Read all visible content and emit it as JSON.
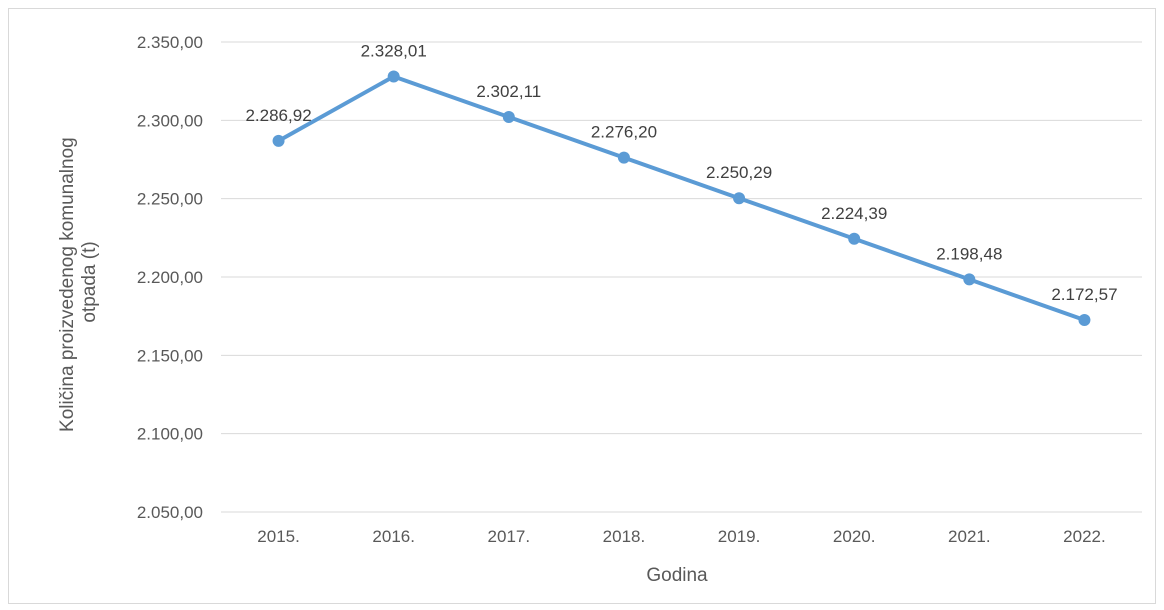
{
  "chart_data": {
    "type": "line",
    "categories": [
      "2015.",
      "2016.",
      "2017.",
      "2018.",
      "2019.",
      "2020.",
      "2021.",
      "2022."
    ],
    "series": [
      {
        "values": [
          2286.92,
          2328.01,
          2302.11,
          2276.2,
          2250.29,
          2224.39,
          2198.48,
          2172.57
        ],
        "data_labels": [
          "2.286,92",
          "2.328,01",
          "2.302,11",
          "2.276,20",
          "2.250,29",
          "2.224,39",
          "2.198,48",
          "2.172,57"
        ],
        "color": "#5b9bd5"
      }
    ],
    "xlabel": "Godina",
    "ylabel_lines": [
      "Količina proizvedenog komunalnog",
      "otpada (t)"
    ],
    "ylim": [
      2050,
      2350
    ],
    "yticks": [
      2050,
      2100,
      2150,
      2200,
      2250,
      2300,
      2350
    ],
    "ytick_labels": [
      "2.050,00",
      "2.100,00",
      "2.150,00",
      "2.200,00",
      "2.250,00",
      "2.300,00",
      "2.350,00"
    ],
    "grid": true,
    "legend": "none"
  }
}
